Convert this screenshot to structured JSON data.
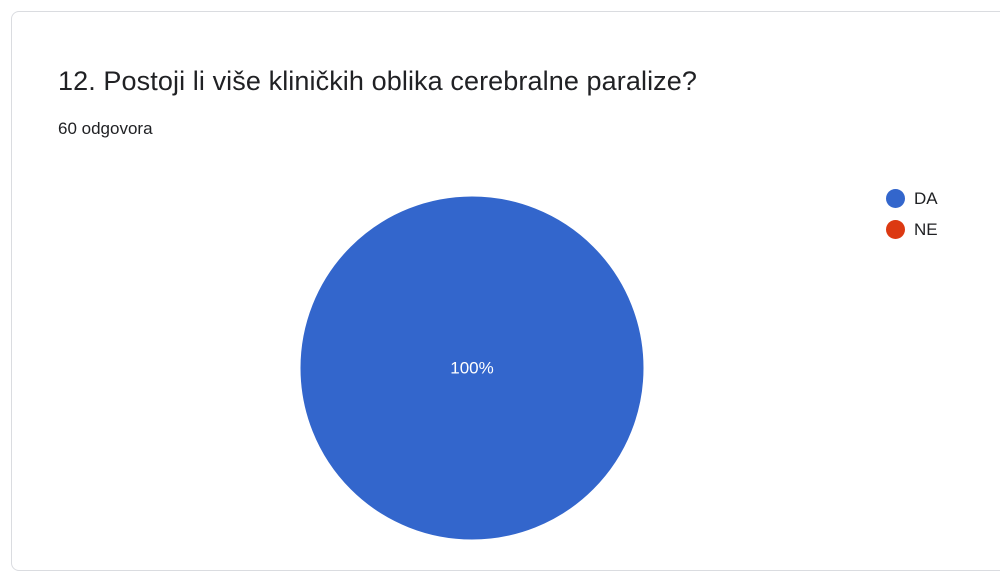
{
  "card": {
    "title": "12. Postoji li više kliničkih oblika cerebralne paralize?",
    "subtitle": "60 odgovora"
  },
  "chart_data": {
    "type": "pie",
    "title": "12. Postoji li više kliničkih oblika cerebralne paralize?",
    "subtitle": "60 odgovora",
    "categories": [
      "DA",
      "NE"
    ],
    "values": [
      100,
      0
    ],
    "colors": [
      "#3366cc",
      "#dc3912"
    ],
    "data_labels": [
      "100%",
      ""
    ],
    "legend_position": "right"
  }
}
